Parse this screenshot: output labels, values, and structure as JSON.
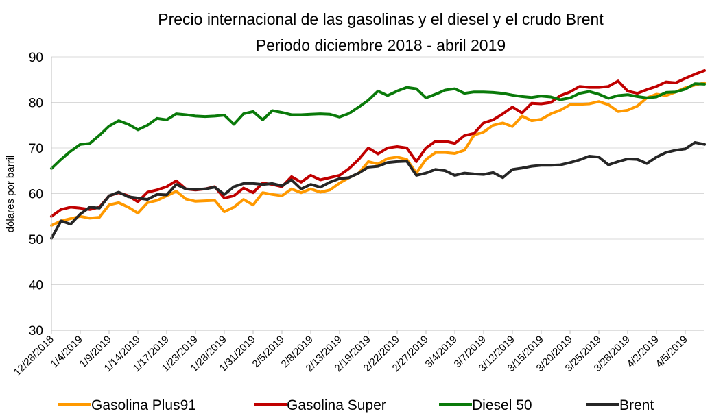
{
  "chart_data": {
    "type": "line",
    "title": "Precio internacional de las gasolinas y el diesel y el crudo Brent",
    "subtitle": "Periodo diciembre 2018 - abril 2019",
    "y_label": "dólares por barril",
    "categories": [
      "12/28/2018",
      null,
      null,
      "1/4/2019",
      null,
      null,
      "1/9/2019",
      null,
      null,
      "1/14/2019",
      null,
      null,
      "1/17/2019",
      null,
      null,
      "1/23/2019",
      null,
      null,
      "1/28/2019",
      null,
      null,
      "1/31/2019",
      null,
      null,
      "2/5/2019",
      null,
      null,
      "2/8/2019",
      null,
      null,
      "2/13/2019",
      null,
      null,
      "2/19/2019",
      null,
      null,
      "2/22/2019",
      null,
      null,
      "2/27/2019",
      null,
      null,
      "3/4/2019",
      null,
      null,
      "3/7/2019",
      null,
      null,
      "3/12/2019",
      null,
      null,
      "3/15/2019",
      null,
      null,
      "3/20/2019",
      null,
      null,
      "3/25/2019",
      null,
      null,
      "3/28/2019",
      null,
      null,
      "4/2/2019",
      null,
      null,
      "4/5/2019",
      null,
      null
    ],
    "ylim": [
      30,
      90
    ],
    "yticks": [
      30,
      40,
      50,
      60,
      70,
      80,
      90
    ],
    "grid": true,
    "legend": "bottom",
    "series": [
      {
        "name": "Gasolina Plus91",
        "color": "#ff9900",
        "values": [
          53,
          54,
          54.5,
          55,
          54.6,
          54.8,
          57.5,
          58,
          57,
          55.7,
          58,
          58.5,
          59.5,
          60.5,
          58.8,
          58.3,
          58.4,
          58.5,
          56,
          57,
          58.7,
          57.5,
          60.2,
          59.8,
          59.5,
          61,
          60.2,
          61,
          60.3,
          60.8,
          62.3,
          63.5,
          64.5,
          67,
          66.5,
          67.7,
          68,
          67.5,
          64.5,
          67.5,
          69,
          69,
          68.8,
          69.5,
          72.8,
          73.5,
          75,
          75.5,
          74.7,
          77,
          76,
          76.3,
          77.5,
          78.3,
          79.5,
          79.6,
          79.7,
          80.2,
          79.5,
          78,
          78.3,
          79.2,
          81,
          81.8,
          81.5,
          82.3,
          83.2,
          83.8,
          84.3
        ]
      },
      {
        "name": "Gasolina Super",
        "color": "#c00000",
        "values": [
          55,
          56.5,
          57,
          56.8,
          56.5,
          57,
          59.5,
          60.2,
          59.5,
          58.2,
          60.3,
          60.8,
          61.5,
          62.8,
          61,
          60.8,
          61,
          61.5,
          59,
          59.5,
          61.2,
          60.2,
          62.3,
          62,
          61.5,
          63.7,
          62.5,
          64,
          63,
          63.5,
          64,
          65.5,
          67.5,
          70,
          68.7,
          70,
          70.3,
          70,
          67,
          70,
          71.5,
          71.5,
          71,
          72.7,
          73.2,
          75.5,
          76.2,
          77.5,
          79,
          77.7,
          79.8,
          79.7,
          80,
          81.5,
          82.3,
          83.5,
          83.3,
          83.3,
          83.5,
          84.7,
          82.5,
          82,
          82.8,
          83.5,
          84.5,
          84.3,
          85.3,
          86.2,
          87
        ]
      },
      {
        "name": "Diesel 50",
        "color": "#0a7a0a",
        "values": [
          65.5,
          67.5,
          69.3,
          70.8,
          71,
          72.8,
          74.8,
          76,
          75.2,
          74,
          75,
          76.5,
          76.2,
          77.5,
          77.3,
          77,
          76.9,
          77,
          77.2,
          75.2,
          77.5,
          78,
          76.2,
          78.2,
          77.8,
          77.3,
          77.3,
          77.4,
          77.5,
          77.4,
          76.8,
          77.6,
          79,
          80.5,
          82.5,
          81.5,
          82.5,
          83.3,
          83,
          81,
          81.8,
          82.7,
          83,
          82,
          82.3,
          82.3,
          82.2,
          82,
          81.6,
          81.3,
          81.1,
          81.4,
          81.2,
          80.6,
          81,
          82,
          82.4,
          81.8,
          80.9,
          81.5,
          81.7,
          81.3,
          81,
          81.2,
          82.2,
          82.3,
          82.9,
          84.1,
          84
        ]
      },
      {
        "name": "Brent",
        "color": "#262626",
        "values": [
          50.2,
          54,
          53.3,
          55.5,
          57,
          56.8,
          59.5,
          60.3,
          59.3,
          59,
          58.7,
          59.8,
          59.7,
          62,
          61,
          60.9,
          61,
          61.4,
          59.8,
          61.5,
          62.2,
          62.2,
          62,
          62.2,
          61.7,
          63,
          61,
          62,
          61.4,
          62.5,
          63.3,
          63.5,
          64.5,
          65.8,
          66,
          66.8,
          67,
          67.1,
          64,
          64.5,
          65.3,
          65,
          64,
          64.5,
          64.3,
          64.2,
          64.6,
          63.5,
          65.3,
          65.6,
          66,
          66.2,
          66.2,
          66.3,
          66.8,
          67.4,
          68.2,
          68,
          66.3,
          67,
          67.6,
          67.5,
          66.6,
          68,
          69,
          69.5,
          69.8,
          71.2,
          70.8
        ]
      }
    ]
  }
}
